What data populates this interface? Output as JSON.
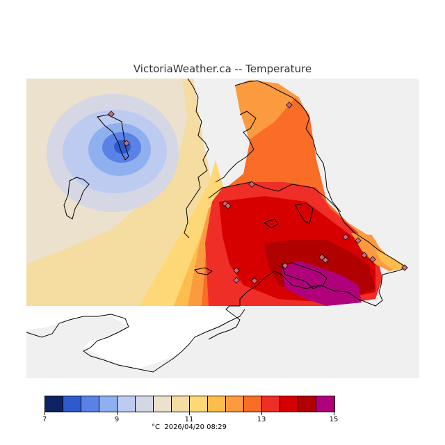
{
  "header": {
    "title": "VictoriaWeather.ca -- Temperature"
  },
  "legend": {
    "unit": "°C",
    "timestamp": "2026/04/20 08:29",
    "ticks": [
      "7",
      "9",
      "11",
      "13",
      "15"
    ],
    "colors": [
      "#0d2366",
      "#2e5bcc",
      "#5a82e6",
      "#8fb0ef",
      "#bccbef",
      "#d5d7e4",
      "#ebe1cc",
      "#f5dca0",
      "#fed777",
      "#fdbd4c",
      "#fc9a40",
      "#f96d26",
      "#ef2e27",
      "#d60000",
      "#b00000",
      "#b0007a"
    ]
  },
  "stations_count": 17
}
